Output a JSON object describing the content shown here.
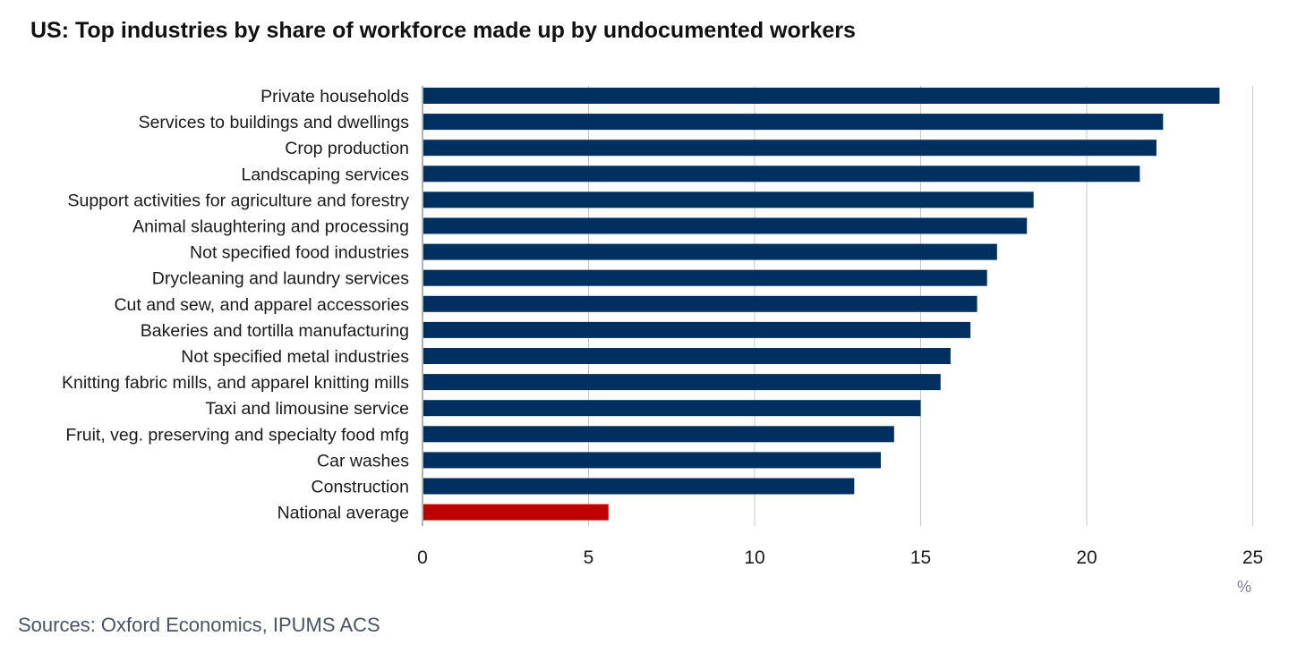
{
  "title": "US: Top industries by share of workforce made up by undocumented workers",
  "source": "Sources: Oxford Economics, IPUMS ACS",
  "chart_data": {
    "type": "bar",
    "orientation": "horizontal",
    "title": "US: Top industries by share of workforce made up by undocumented workers",
    "xlabel": "",
    "ylabel": "",
    "unit": "%",
    "xlim": [
      0,
      25
    ],
    "xticks": [
      0,
      5,
      10,
      15,
      20,
      25
    ],
    "grid": "vertical",
    "categories": [
      "Private households",
      "Services to buildings and dwellings",
      "Crop production",
      "Landscaping services",
      "Support activities for agriculture and forestry",
      "Animal slaughtering and processing",
      "Not specified food industries",
      "Drycleaning and laundry services",
      "Cut and sew, and apparel accessories",
      "Bakeries and tortilla manufacturing",
      "Not specified metal industries",
      "Knitting fabric mills, and apparel knitting mills",
      "Taxi and limousine service",
      "Fruit, veg. preserving and specialty food mfg",
      "Car washes",
      "Construction",
      "National average"
    ],
    "values": [
      24.0,
      22.3,
      22.1,
      21.6,
      18.4,
      18.2,
      17.3,
      17.0,
      16.7,
      16.5,
      15.9,
      15.6,
      15.0,
      14.2,
      13.8,
      13.0,
      5.6
    ],
    "colors": {
      "bar": "#00305f",
      "highlight": "#c00000",
      "grid": "#c8c8c8"
    },
    "highlight_category": "National average"
  }
}
